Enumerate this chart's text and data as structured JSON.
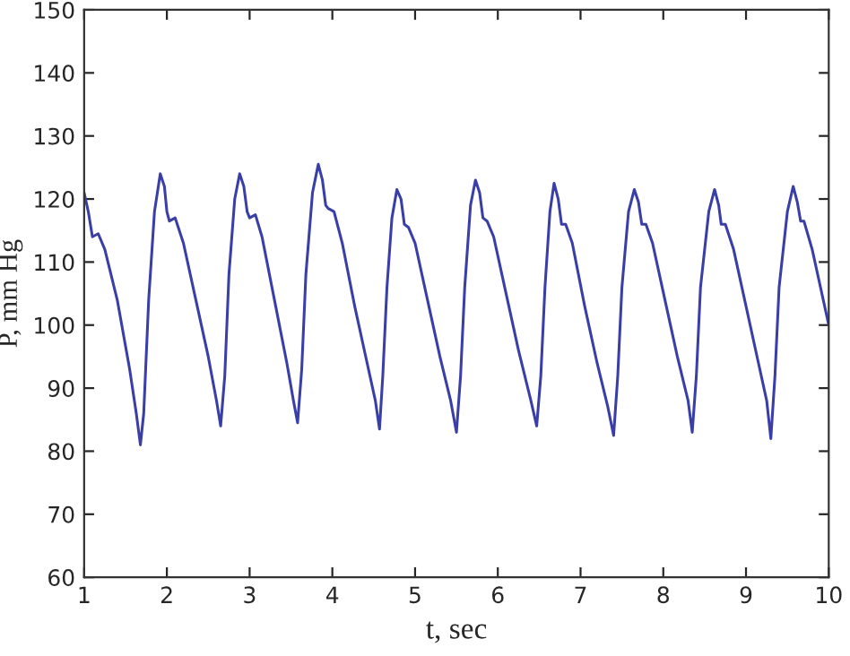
{
  "chart_data": {
    "type": "line",
    "xlabel": "t, sec",
    "ylabel": "P, mm Hg",
    "xlim": [
      1,
      10
    ],
    "ylim": [
      60,
      150
    ],
    "xticks": [
      1,
      2,
      3,
      4,
      5,
      6,
      7,
      8,
      9,
      10
    ],
    "yticks": [
      60,
      70,
      80,
      90,
      100,
      110,
      120,
      130,
      140,
      150
    ],
    "grid": false,
    "legend": false,
    "series": [
      {
        "color": "#3a3fa8",
        "x": [
          1.0,
          1.05,
          1.1,
          1.17,
          1.25,
          1.4,
          1.55,
          1.63,
          1.68,
          1.72,
          1.78,
          1.85,
          1.92,
          1.97,
          2.0,
          2.03,
          2.1,
          2.2,
          2.35,
          2.5,
          2.6,
          2.65,
          2.7,
          2.75,
          2.82,
          2.88,
          2.93,
          2.97,
          3.0,
          3.07,
          3.15,
          3.3,
          3.45,
          3.53,
          3.58,
          3.63,
          3.68,
          3.76,
          3.83,
          3.88,
          3.92,
          3.95,
          4.02,
          4.12,
          4.27,
          4.42,
          4.52,
          4.57,
          4.61,
          4.66,
          4.72,
          4.78,
          4.83,
          4.87,
          4.92,
          5.0,
          5.15,
          5.3,
          5.43,
          5.5,
          5.55,
          5.6,
          5.67,
          5.73,
          5.78,
          5.82,
          5.87,
          5.95,
          6.1,
          6.25,
          6.4,
          6.47,
          6.52,
          6.57,
          6.63,
          6.68,
          6.73,
          6.77,
          6.82,
          6.9,
          7.05,
          7.2,
          7.33,
          7.4,
          7.45,
          7.5,
          7.58,
          7.65,
          7.7,
          7.74,
          7.79,
          7.87,
          8.02,
          8.17,
          8.3,
          8.35,
          8.4,
          8.45,
          8.55,
          8.62,
          8.67,
          8.7,
          8.75,
          8.85,
          9.0,
          9.15,
          9.25,
          9.3,
          9.35,
          9.4,
          9.5,
          9.57,
          9.62,
          9.66,
          9.7,
          9.8,
          9.9,
          10.0
        ],
        "values": [
          121,
          118,
          114,
          114.5,
          112,
          104,
          93,
          86,
          81,
          86,
          104,
          118,
          124,
          122,
          118,
          116.5,
          117,
          113,
          104,
          95,
          88,
          84,
          92,
          108,
          120,
          124,
          122,
          118,
          117,
          117.5,
          114,
          104,
          94,
          88,
          84.5,
          93,
          108,
          121,
          125.5,
          123,
          119,
          118.5,
          118,
          113,
          103,
          94,
          88,
          83.5,
          92,
          106,
          117,
          121.5,
          120,
          116,
          115.5,
          113,
          104,
          95,
          88,
          83,
          92,
          106,
          119,
          123,
          121,
          117,
          116.5,
          114,
          105,
          96,
          88,
          84,
          92,
          106,
          118,
          122.5,
          120,
          116,
          116,
          113,
          103,
          94,
          87,
          82.5,
          92,
          106,
          118,
          121.5,
          119.5,
          116,
          116,
          113,
          104,
          95,
          88,
          83,
          92,
          106,
          118,
          121.5,
          119,
          116,
          116,
          112,
          103,
          94,
          88,
          82,
          92,
          106,
          118,
          122,
          119.5,
          116.5,
          116.5,
          112,
          106,
          100
        ]
      }
    ]
  }
}
